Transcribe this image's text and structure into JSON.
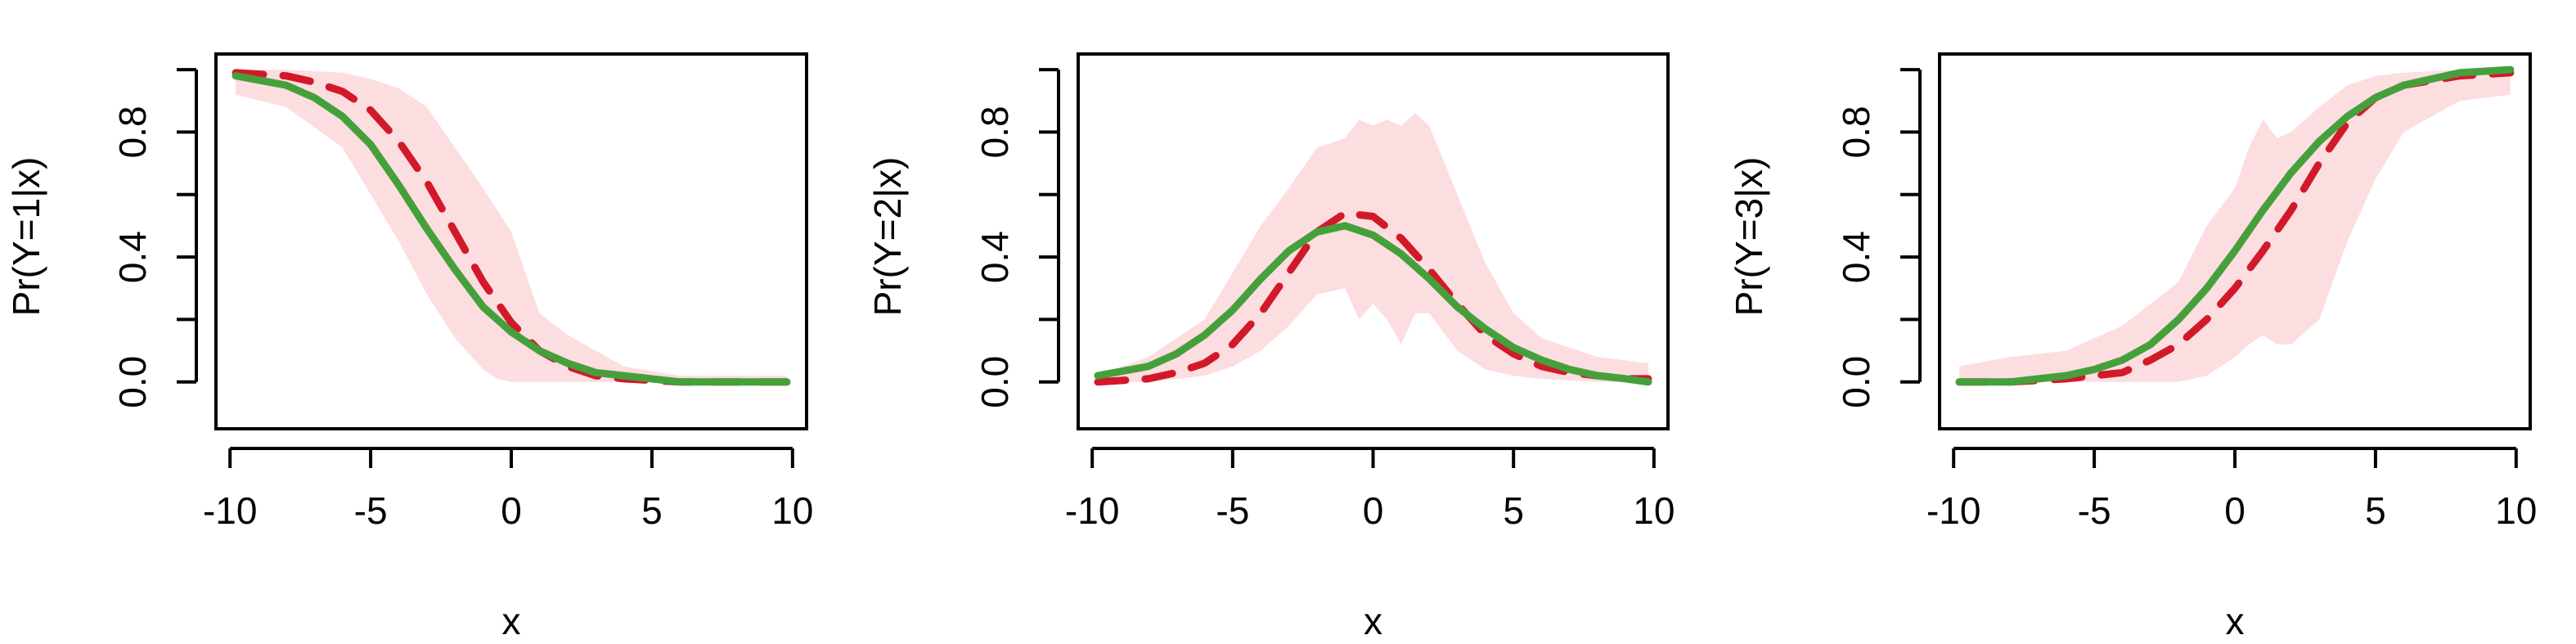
{
  "colors": {
    "band": "#fcdde0",
    "dashed_line": "#d2192a",
    "solid_line": "#45a03c",
    "axis": "#000000"
  },
  "chart_data": [
    {
      "type": "line",
      "xlabel": "x",
      "ylabel": "Pr(Y=1|x)",
      "xlim": [
        -10.5,
        10.5
      ],
      "ylim": [
        -0.15,
        1.05
      ],
      "xticks": [
        -10,
        -5,
        0,
        5,
        10
      ],
      "yticks": [
        0.0,
        0.4,
        0.8
      ],
      "ytick_labels": [
        "0.0",
        "0.4",
        "0.8"
      ],
      "band": {
        "x": [
          -9.8,
          -8,
          -6,
          -5,
          -4,
          -3,
          -2,
          -1,
          -0.5,
          0,
          0.5,
          1,
          2,
          3,
          4,
          6,
          8,
          9.8
        ],
        "lower": [
          0.92,
          0.88,
          0.75,
          0.6,
          0.45,
          0.28,
          0.14,
          0.04,
          0.01,
          0.0,
          0.0,
          0.0,
          0.0,
          0.0,
          0.0,
          0.0,
          0.0,
          0.0
        ],
        "upper": [
          1.0,
          1.0,
          0.99,
          0.97,
          0.94,
          0.88,
          0.75,
          0.62,
          0.55,
          0.48,
          0.35,
          0.22,
          0.15,
          0.1,
          0.05,
          0.02,
          0.02,
          0.02
        ]
      },
      "series": [
        {
          "style": "dashed",
          "x": [
            -9.8,
            -8,
            -7,
            -6,
            -5,
            -4,
            -3,
            -2,
            -1,
            0,
            1,
            2,
            3,
            4,
            6,
            8,
            9.8
          ],
          "values": [
            0.99,
            0.98,
            0.96,
            0.93,
            0.87,
            0.77,
            0.64,
            0.48,
            0.32,
            0.19,
            0.1,
            0.05,
            0.02,
            0.01,
            0.0,
            0.0,
            0.0
          ]
        },
        {
          "style": "solid",
          "x": [
            -9.8,
            -8,
            -7,
            -6,
            -5,
            -4,
            -3,
            -2,
            -1,
            0,
            1,
            2,
            3,
            4,
            6,
            8,
            9.8
          ],
          "values": [
            0.98,
            0.95,
            0.91,
            0.85,
            0.76,
            0.63,
            0.49,
            0.36,
            0.24,
            0.16,
            0.1,
            0.06,
            0.03,
            0.02,
            0.0,
            0.0,
            0.0
          ]
        }
      ]
    },
    {
      "type": "line",
      "xlabel": "x",
      "ylabel": "Pr(Y=2|x)",
      "xlim": [
        -10.5,
        10.5
      ],
      "ylim": [
        -0.15,
        1.05
      ],
      "xticks": [
        -10,
        -5,
        0,
        5,
        10
      ],
      "yticks": [
        0.0,
        0.4,
        0.8
      ],
      "ytick_labels": [
        "0.0",
        "0.4",
        "0.8"
      ],
      "band": {
        "x": [
          -9.8,
          -8,
          -6,
          -5,
          -4,
          -3,
          -2,
          -1,
          -0.5,
          0,
          0.5,
          1,
          1.5,
          2,
          3,
          4,
          5,
          6,
          8,
          9.8
        ],
        "lower": [
          0.0,
          0.0,
          0.02,
          0.05,
          0.1,
          0.18,
          0.28,
          0.3,
          0.2,
          0.25,
          0.2,
          0.12,
          0.22,
          0.22,
          0.1,
          0.04,
          0.02,
          0.01,
          0.0,
          0.0
        ],
        "upper": [
          0.02,
          0.08,
          0.2,
          0.35,
          0.5,
          0.62,
          0.75,
          0.78,
          0.84,
          0.82,
          0.84,
          0.82,
          0.86,
          0.82,
          0.6,
          0.38,
          0.22,
          0.14,
          0.08,
          0.06
        ]
      },
      "series": [
        {
          "style": "dashed",
          "x": [
            -9.8,
            -8,
            -7,
            -6,
            -5,
            -4,
            -3,
            -2,
            -1,
            0,
            1,
            2,
            3,
            4,
            5,
            6,
            7,
            8,
            9,
            9.8
          ],
          "values": [
            0.0,
            0.01,
            0.03,
            0.06,
            0.12,
            0.22,
            0.35,
            0.48,
            0.54,
            0.53,
            0.46,
            0.36,
            0.25,
            0.15,
            0.09,
            0.05,
            0.03,
            0.02,
            0.01,
            0.01
          ]
        },
        {
          "style": "solid",
          "x": [
            -9.8,
            -8,
            -7,
            -6,
            -5,
            -4,
            -3,
            -2,
            -1,
            0,
            1,
            2,
            3,
            4,
            5,
            6,
            7,
            8,
            9,
            9.8
          ],
          "values": [
            0.02,
            0.05,
            0.09,
            0.15,
            0.23,
            0.33,
            0.42,
            0.48,
            0.5,
            0.47,
            0.41,
            0.33,
            0.24,
            0.17,
            0.11,
            0.07,
            0.04,
            0.02,
            0.01,
            0.0
          ]
        }
      ]
    },
    {
      "type": "line",
      "xlabel": "x",
      "ylabel": "Pr(Y=3|x)",
      "xlim": [
        -10.5,
        10.5
      ],
      "ylim": [
        -0.15,
        1.05
      ],
      "xticks": [
        -10,
        -5,
        0,
        5,
        10
      ],
      "yticks": [
        0.0,
        0.4,
        0.8
      ],
      "ytick_labels": [
        "0.0",
        "0.4",
        "0.8"
      ],
      "band": {
        "x": [
          -9.8,
          -8,
          -6,
          -4,
          -2,
          -1,
          0,
          0.5,
          1,
          1.5,
          2,
          3,
          4,
          5,
          6,
          8,
          9.8
        ],
        "lower": [
          0.0,
          0.0,
          0.0,
          0.0,
          0.0,
          0.02,
          0.08,
          0.12,
          0.15,
          0.12,
          0.12,
          0.2,
          0.45,
          0.65,
          0.8,
          0.9,
          0.92
        ],
        "upper": [
          0.05,
          0.08,
          0.1,
          0.18,
          0.32,
          0.5,
          0.62,
          0.75,
          0.84,
          0.78,
          0.8,
          0.88,
          0.95,
          0.98,
          0.99,
          1.0,
          1.0
        ]
      },
      "series": [
        {
          "style": "dashed",
          "x": [
            -9.8,
            -8,
            -6,
            -4,
            -3,
            -2,
            -1,
            0,
            1,
            2,
            3,
            4,
            5,
            6,
            8,
            9.8
          ],
          "values": [
            0.0,
            0.0,
            0.01,
            0.03,
            0.07,
            0.12,
            0.2,
            0.3,
            0.42,
            0.55,
            0.7,
            0.83,
            0.91,
            0.95,
            0.98,
            0.99
          ]
        },
        {
          "style": "solid",
          "x": [
            -9.8,
            -8,
            -6,
            -5,
            -4,
            -3,
            -2,
            -1,
            0,
            1,
            2,
            3,
            4,
            5,
            6,
            7,
            8,
            9.8
          ],
          "values": [
            0.0,
            0.0,
            0.02,
            0.04,
            0.07,
            0.12,
            0.2,
            0.3,
            0.42,
            0.55,
            0.67,
            0.77,
            0.85,
            0.91,
            0.95,
            0.97,
            0.99,
            1.0
          ]
        }
      ]
    }
  ]
}
